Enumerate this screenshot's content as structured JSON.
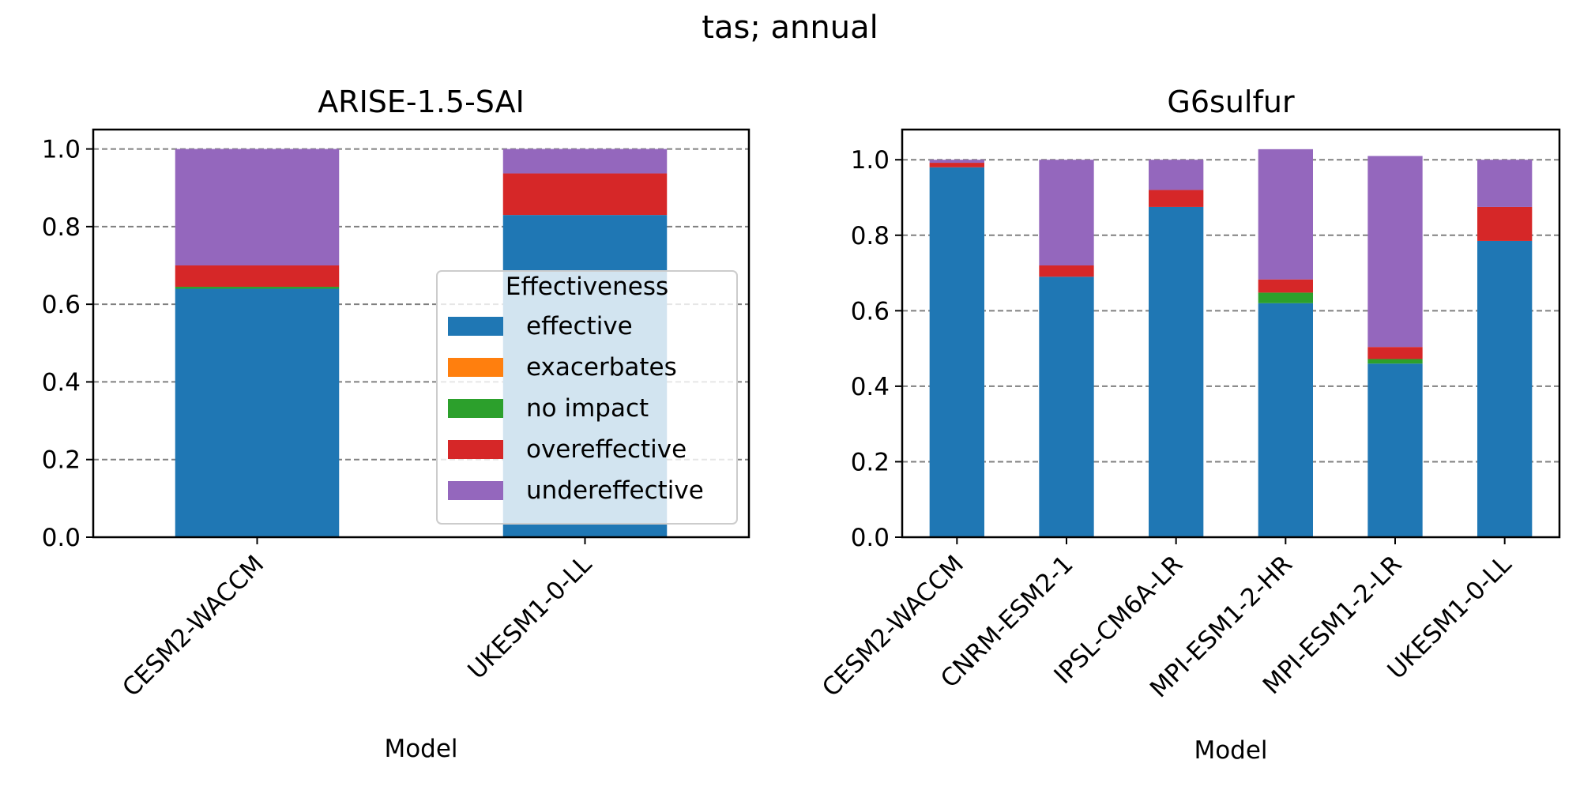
{
  "figure_title": "tas; annual",
  "legend": {
    "title": "Effectiveness",
    "entries": [
      {
        "label": "effective",
        "color": "#1f77b4"
      },
      {
        "label": "exacerbates",
        "color": "#ff7f0e"
      },
      {
        "label": "no impact",
        "color": "#2ca02c"
      },
      {
        "label": "overeffective",
        "color": "#d62728"
      },
      {
        "label": "undereffective",
        "color": "#9467bd"
      }
    ],
    "placement": "lower-right of left panel"
  },
  "chart_data": [
    {
      "type": "bar",
      "stacked": true,
      "title": "ARISE-1.5-SAI",
      "xlabel": "Model",
      "ylabel": "",
      "ylim": [
        0,
        1.05
      ],
      "yticks": [
        "0.0",
        "0.2",
        "0.4",
        "0.6",
        "0.8",
        "1.0"
      ],
      "grid": "horizontal dashed",
      "categories": [
        "CESM2-WACCM",
        "UKESM1-0-LL"
      ],
      "series": [
        {
          "name": "effective",
          "values": [
            0.64,
            0.83
          ]
        },
        {
          "name": "exacerbates",
          "values": [
            0.0,
            0.0
          ]
        },
        {
          "name": "no impact",
          "values": [
            0.005,
            0.0
          ]
        },
        {
          "name": "overeffective",
          "values": [
            0.055,
            0.107
          ]
        },
        {
          "name": "undereffective",
          "values": [
            0.3,
            0.063
          ]
        }
      ]
    },
    {
      "type": "bar",
      "stacked": true,
      "title": "G6sulfur",
      "xlabel": "Model",
      "ylabel": "",
      "ylim": [
        0,
        1.08
      ],
      "yticks": [
        "0.0",
        "0.2",
        "0.4",
        "0.6",
        "0.8",
        "1.0"
      ],
      "grid": "horizontal dashed",
      "categories": [
        "CESM2-WACCM",
        "CNRM-ESM2-1",
        "IPSL-CM6A-LR",
        "MPI-ESM1-2-HR",
        "MPI-ESM1-2-LR",
        "UKESM1-0-LL"
      ],
      "series": [
        {
          "name": "effective",
          "values": [
            0.98,
            0.69,
            0.875,
            0.62,
            0.46,
            0.785
          ]
        },
        {
          "name": "exacerbates",
          "values": [
            0.0,
            0.0,
            0.0,
            0.0,
            0.0,
            0.0
          ]
        },
        {
          "name": "no impact",
          "values": [
            0.0,
            0.0,
            0.0,
            0.028,
            0.012,
            0.0
          ]
        },
        {
          "name": "overeffective",
          "values": [
            0.012,
            0.03,
            0.045,
            0.035,
            0.032,
            0.09
          ]
        },
        {
          "name": "undereffective",
          "values": [
            0.008,
            0.28,
            0.08,
            0.345,
            0.506,
            0.125
          ]
        }
      ]
    }
  ]
}
